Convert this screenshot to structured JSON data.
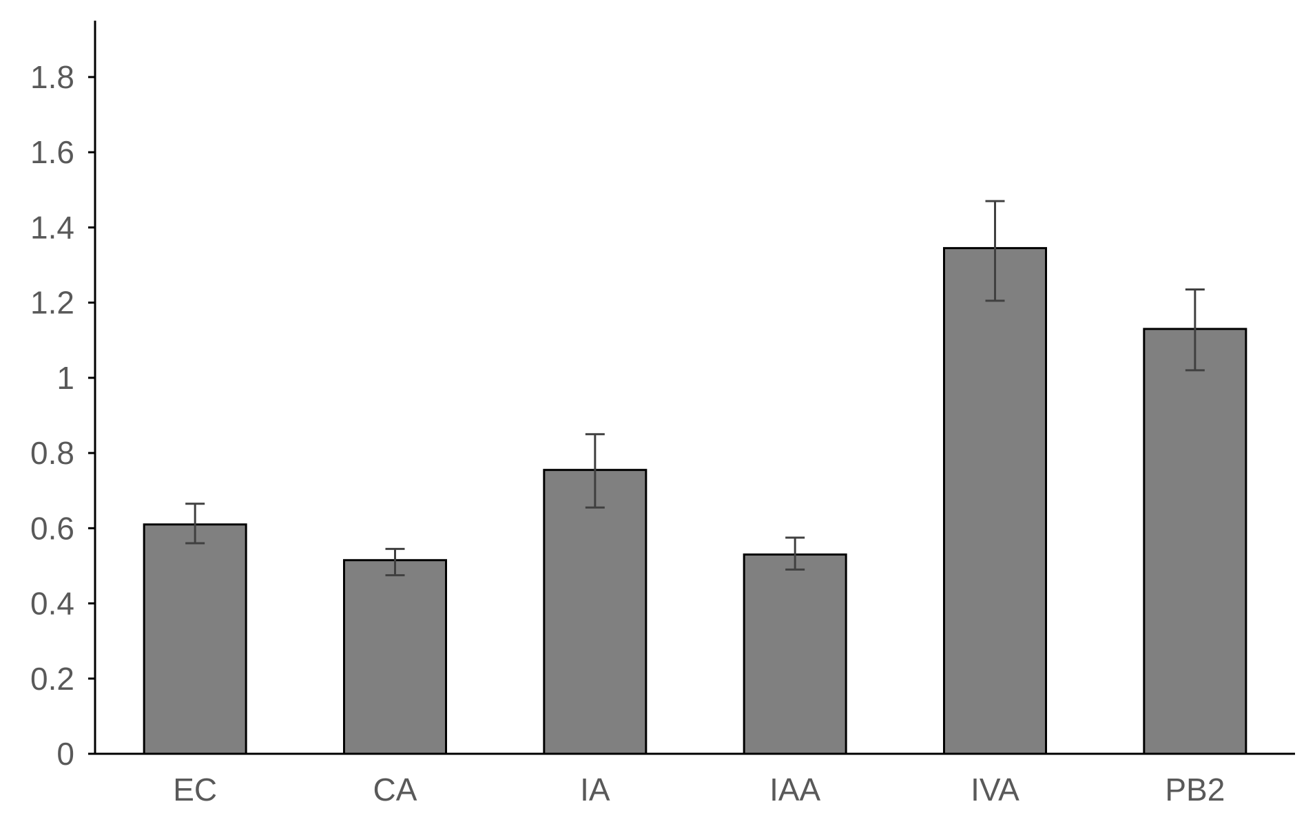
{
  "chart_data": {
    "type": "bar",
    "title": "",
    "xlabel": "",
    "ylabel": "",
    "categories": [
      "EC",
      "CA",
      "IA",
      "IAA",
      "IVA",
      "PB2"
    ],
    "values": [
      0.61,
      0.515,
      0.755,
      0.53,
      1.345,
      1.13
    ],
    "error_low": [
      0.56,
      0.475,
      0.655,
      0.49,
      1.205,
      1.02
    ],
    "error_high": [
      0.665,
      0.545,
      0.85,
      0.575,
      1.47,
      1.235
    ],
    "ylim": [
      0,
      1.95
    ],
    "yticks": [
      0,
      0.2,
      0.4,
      0.6,
      0.8,
      1,
      1.2,
      1.4,
      1.6,
      1.8
    ],
    "ytick_labels": [
      "0",
      "0.2",
      "0.4",
      "0.6",
      "0.8",
      "1",
      "1.2",
      "1.4",
      "1.6",
      "1.8"
    ],
    "grid": false,
    "legend": "none",
    "colors": {
      "bar_fill": "#808080",
      "bar_stroke": "#000000",
      "error_bar": "#404040",
      "tick_text": "#595959"
    }
  }
}
